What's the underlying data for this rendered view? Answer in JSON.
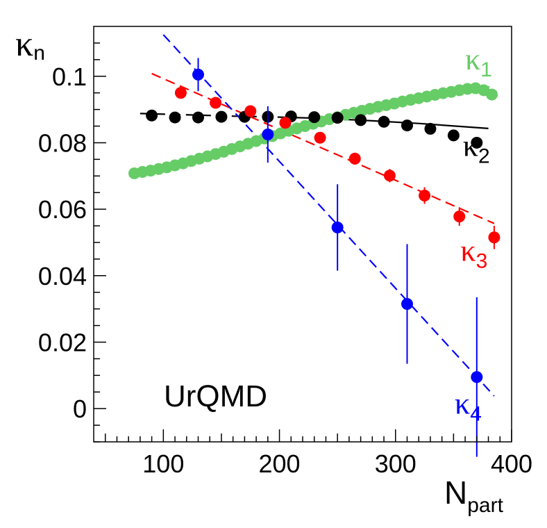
{
  "chart_data": {
    "type": "scatter",
    "title": "",
    "xlabel": "N",
    "xlabel_sub": "part",
    "ylabel": "κ",
    "ylabel_sub": "n",
    "xlim": [
      40,
      400
    ],
    "ylim": [
      -0.01,
      0.115
    ],
    "grid": false,
    "x_ticks": [
      100,
      200,
      300,
      400
    ],
    "x_tick_labels": [
      "100",
      "200",
      "300",
      "400"
    ],
    "y_ticks": [
      0,
      0.02,
      0.04,
      0.06,
      0.08,
      0.1
    ],
    "y_tick_labels": [
      "0",
      "0.02",
      "0.04",
      "0.06",
      "0.08",
      "0.1"
    ],
    "annotation": "UrQMD",
    "series": [
      {
        "name": "κ1",
        "label_main": "κ",
        "label_sub": "1",
        "color": "#66cc66",
        "label_x": 360,
        "label_y": 0.102,
        "x": [
          75,
          82,
          89,
          96,
          103,
          110,
          117,
          124,
          131,
          138,
          145,
          152,
          159,
          166,
          173,
          180,
          187,
          194,
          201,
          208,
          215,
          222,
          229,
          236,
          243,
          250,
          257,
          264,
          271,
          278,
          285,
          292,
          299,
          306,
          313,
          320,
          327,
          334,
          341,
          348,
          355,
          362,
          369,
          376,
          383
        ],
        "y": [
          0.0708,
          0.0712,
          0.0716,
          0.0721,
          0.0726,
          0.0732,
          0.0738,
          0.0745,
          0.0752,
          0.0759,
          0.0766,
          0.0773,
          0.0781,
          0.0789,
          0.0797,
          0.0805,
          0.0813,
          0.082,
          0.0828,
          0.0836,
          0.0843,
          0.085,
          0.0857,
          0.0864,
          0.0871,
          0.0877,
          0.0884,
          0.089,
          0.0896,
          0.0902,
          0.0908,
          0.0913,
          0.0918,
          0.0924,
          0.0929,
          0.0934,
          0.0939,
          0.0944,
          0.0949,
          0.0953,
          0.0958,
          0.0962,
          0.0964,
          0.0958,
          0.0945
        ],
        "yerr": null,
        "fit": {
          "style": "solid",
          "x": [
            370,
            381
          ],
          "y": [
            0.0955,
            0.0969
          ]
        }
      },
      {
        "name": "κ2",
        "label_main": "κ",
        "label_sub": "2",
        "color": "#000000",
        "label_x": 358,
        "label_y": 0.076,
        "x": [
          90,
          110,
          130,
          150,
          170,
          190,
          210,
          230,
          250,
          270,
          290,
          310,
          330,
          350,
          370
        ],
        "y": [
          0.0882,
          0.0876,
          0.0876,
          0.0878,
          0.0878,
          0.0878,
          0.0879,
          0.0877,
          0.0875,
          0.0868,
          0.0863,
          0.0852,
          0.0842,
          0.0822,
          0.08
        ],
        "yerr": null,
        "fit": {
          "style": "mixed",
          "dash_until": 200,
          "x": [
            80,
            120,
            160,
            200,
            240,
            280,
            320,
            360,
            380
          ],
          "y": [
            0.0888,
            0.0884,
            0.088,
            0.0877,
            0.0873,
            0.0866,
            0.0858,
            0.0848,
            0.0843
          ]
        }
      },
      {
        "name": "κ3",
        "label_main": "κ",
        "label_sub": "3",
        "color": "#ff0000",
        "label_x": 356,
        "label_y": 0.0445,
        "x": [
          115,
          145,
          175,
          205,
          235,
          265,
          295,
          325,
          355,
          385
        ],
        "y": [
          0.095,
          0.092,
          0.0895,
          0.086,
          0.0815,
          0.0752,
          0.0701,
          0.0641,
          0.0578,
          0.0515
        ],
        "yerr": [
          0.001,
          0.001,
          0.0012,
          0.0013,
          0.0015,
          0.0018,
          0.002,
          0.0025,
          0.0028,
          0.0035
        ],
        "fit": {
          "style": "dashed",
          "x": [
            90,
            385
          ],
          "y": [
            0.1008,
            0.0557
          ]
        }
      },
      {
        "name": "κ4",
        "label_main": "κ",
        "label_sub": "4",
        "color": "#0000ff",
        "label_x": 351,
        "label_y": -0.0015,
        "x": [
          130,
          190,
          250,
          310,
          370
        ],
        "y": [
          0.1005,
          0.0825,
          0.0545,
          0.0315,
          0.0095
        ],
        "yerr": [
          0.005,
          0.0085,
          0.013,
          0.018,
          0.024
        ],
        "fit": {
          "style": "dashed",
          "x": [
            100,
            385
          ],
          "y": [
            0.1125,
            0.0038
          ]
        }
      }
    ]
  }
}
